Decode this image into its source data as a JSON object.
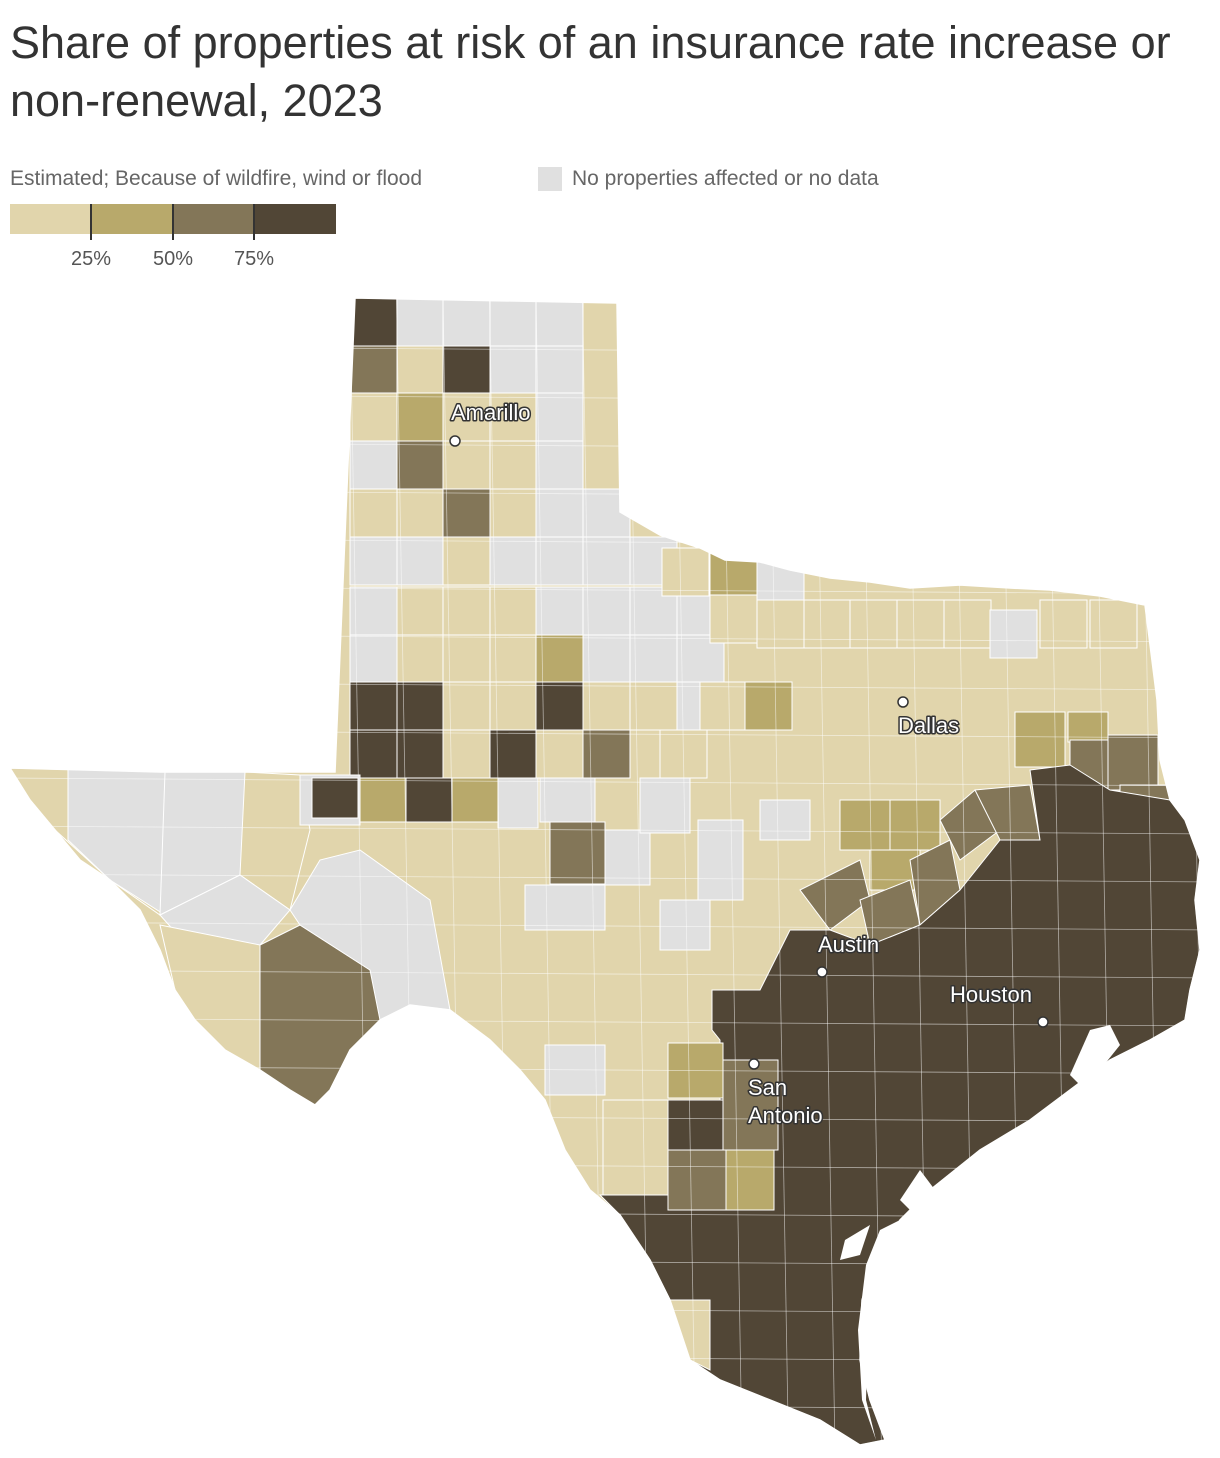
{
  "title": "Share of properties at risk of an insurance rate increase or non-renewal, 2023",
  "legend": {
    "subtitle": "Estimated; Because of wildfire, wind or flood",
    "nodata_label": "No properties affected or no data",
    "ticks": [
      "25%",
      "50%",
      "75%"
    ],
    "colors": {
      "bin_0_25": "#e1d5ac",
      "bin_25_50": "#b8a96b",
      "bin_50_75": "#837658",
      "bin_75_100": "#514636",
      "nodata": "#e0e0e0"
    }
  },
  "cities": [
    {
      "name": "Amarillo"
    },
    {
      "name": "Dallas"
    },
    {
      "name": "Austin"
    },
    {
      "name": "Houston"
    },
    {
      "name": "San Antonio",
      "lines": [
        "San",
        "Antonio"
      ]
    }
  ]
}
